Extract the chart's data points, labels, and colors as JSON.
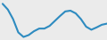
{
  "x": [
    0,
    1,
    2,
    3,
    4,
    5,
    6,
    7,
    8,
    9,
    10,
    11,
    12,
    13,
    14,
    15,
    16,
    17,
    18,
    19,
    20
  ],
  "y": [
    9.0,
    7.5,
    5.0,
    1.5,
    0.3,
    0.8,
    1.8,
    2.5,
    2.5,
    3.2,
    4.5,
    5.8,
    7.0,
    7.2,
    6.5,
    5.0,
    3.0,
    2.2,
    2.8,
    3.5,
    3.8
  ],
  "line_color": "#2e8bc0",
  "line_width": 1.5,
  "background_color": "#ebebeb",
  "ylim": [
    -0.5,
    10.0
  ],
  "xlim": [
    -0.5,
    20
  ]
}
